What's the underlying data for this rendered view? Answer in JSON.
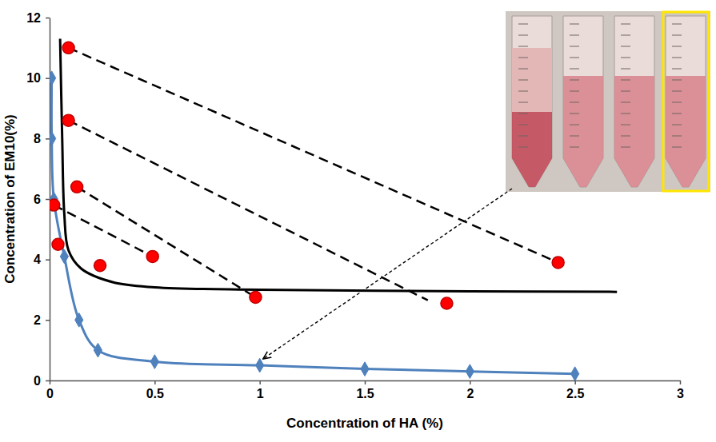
{
  "chart_data": {
    "type": "scatter",
    "xlabel": "Concentration of HA (%)",
    "ylabel": "Concentration of EM10(%)",
    "xlim": [
      0,
      3
    ],
    "xticks": [
      0,
      0.5,
      1,
      1.5,
      2,
      2.5,
      3
    ],
    "ylim": [
      0,
      12
    ],
    "yticks": [
      0,
      2,
      4,
      6,
      8,
      10,
      12
    ],
    "grid": false,
    "series": [
      {
        "type": "line",
        "color": "#4f81bd",
        "marker": "diamond",
        "line_style": "solid",
        "x": [
          0.01,
          0.01,
          0.02,
          0.07,
          0.14,
          0.23,
          0.5,
          1.0,
          1.5,
          2.0,
          2.5
        ],
        "values": [
          10,
          8,
          6,
          4.1,
          2.0,
          1.0,
          0.62,
          0.5,
          0.38,
          0.3,
          0.22
        ]
      },
      {
        "type": "line",
        "color": "#000000",
        "marker": "none",
        "line_style": "solid",
        "x": [
          0.05,
          0.06,
          0.07,
          0.09,
          0.15,
          0.3,
          0.5,
          1.0,
          2.0,
          2.7
        ],
        "values": [
          11.3,
          8,
          5.5,
          4.3,
          3.7,
          3.25,
          3.08,
          3.0,
          2.95,
          2.93
        ]
      },
      {
        "type": "line",
        "color": "#000000",
        "marker": "none",
        "line_style": "dashed",
        "x": [
          0.09,
          2.42
        ],
        "values": [
          11.0,
          3.9
        ]
      },
      {
        "type": "line",
        "color": "#000000",
        "marker": "none",
        "line_style": "dashed",
        "x": [
          0.09,
          1.8
        ],
        "values": [
          8.6,
          2.65
        ]
      },
      {
        "type": "line",
        "color": "#000000",
        "marker": "none",
        "line_style": "dashed",
        "x": [
          0.13,
          0.98
        ],
        "values": [
          6.4,
          2.75
        ]
      },
      {
        "type": "line",
        "color": "#000000",
        "marker": "none",
        "line_style": "dashed",
        "x": [
          0.02,
          0.49
        ],
        "values": [
          5.8,
          4.1
        ]
      },
      {
        "type": "scatter",
        "color": "#ff0000",
        "marker": "circle",
        "x": [
          0.09,
          0.09,
          0.13,
          0.02,
          0.04,
          0.24,
          0.49,
          0.98,
          1.89,
          2.42
        ],
        "values": [
          11.0,
          8.6,
          6.4,
          5.8,
          4.5,
          3.8,
          4.1,
          2.75,
          2.55,
          3.9
        ]
      }
    ]
  }
}
